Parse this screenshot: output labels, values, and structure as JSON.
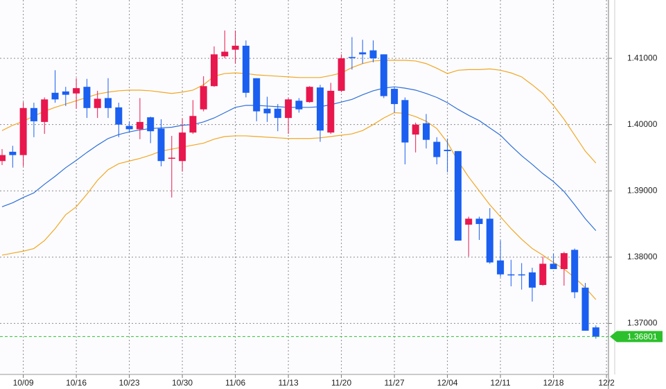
{
  "chart_data": {
    "type": "candlestick",
    "categories": [
      null,
      null,
      "10/09",
      null,
      null,
      null,
      null,
      "10/16",
      null,
      null,
      null,
      null,
      "10/23",
      null,
      null,
      null,
      null,
      "10/30",
      null,
      null,
      null,
      null,
      "11/06",
      null,
      null,
      null,
      null,
      "11/13",
      null,
      null,
      null,
      null,
      "11/20",
      null,
      null,
      null,
      null,
      "11/27",
      null,
      null,
      null,
      null,
      "12/04",
      null,
      null,
      null,
      null,
      "12/11",
      null,
      null,
      null,
      null,
      "12/18",
      null,
      null,
      null,
      null,
      "12/2"
    ],
    "open": [
      1.3945,
      1.3959,
      1.3954,
      1.4025,
      1.4004,
      1.4048,
      1.405,
      1.4047,
      1.4057,
      1.4025,
      1.404,
      1.4026,
      1.3998,
      1.3993,
      1.4011,
      1.3994,
      1.3949,
      1.3945,
      1.3988,
      1.4023,
      1.4058,
      1.4103,
      1.4113,
      1.4119,
      1.407,
      1.4024,
      1.4024,
      1.401,
      1.4036,
      1.4034,
      1.4056,
      1.3988,
      1.4051,
      1.4102,
      1.4109,
      1.4112,
      1.4106,
      1.4054,
      1.4037,
      1.3985,
      1.4002,
      1.3974,
      1.3962,
      1.396,
      1.3849,
      1.3858,
      1.3858,
      1.3795,
      1.3774,
      1.3774,
      1.3777,
      1.3758,
      1.379,
      1.3782,
      1.3811,
      1.3754,
      1.3694,
      null
    ],
    "high": [
      1.3963,
      1.3968,
      1.4034,
      1.4033,
      1.4041,
      1.4082,
      1.4057,
      1.407,
      1.4069,
      1.4051,
      1.407,
      1.4033,
      1.4005,
      1.404,
      1.4012,
      1.4008,
      1.3983,
      1.4009,
      1.4037,
      1.4073,
      1.4118,
      1.4142,
      1.4142,
      1.4127,
      1.407,
      1.4042,
      1.4031,
      1.404,
      1.404,
      1.4058,
      1.406,
      1.4063,
      1.4106,
      1.4132,
      1.4128,
      1.4127,
      1.4106,
      1.4056,
      1.4041,
      1.4003,
      1.4016,
      1.3981,
      1.3979,
      1.396,
      1.3861,
      1.3861,
      1.3874,
      1.3825,
      1.3796,
      1.3791,
      1.3784,
      1.3801,
      1.3805,
      1.3808,
      1.3813,
      1.3761,
      1.3697,
      null
    ],
    "low": [
      1.3939,
      1.3935,
      1.3937,
      1.3981,
      1.3986,
      1.4033,
      1.4028,
      1.4024,
      1.401,
      1.401,
      1.401,
      1.3981,
      1.3989,
      1.3978,
      1.3972,
      1.3937,
      1.389,
      1.3929,
      1.3986,
      1.402,
      1.4057,
      1.41,
      1.4092,
      1.4041,
      1.4005,
      1.4004,
      1.399,
      1.3986,
      1.4018,
      1.4033,
      1.3974,
      1.3986,
      1.4049,
      1.4083,
      1.4092,
      1.4094,
      1.404,
      1.4018,
      1.394,
      1.3958,
      1.3964,
      1.394,
      1.3928,
      1.3825,
      1.3801,
      1.3826,
      1.379,
      1.377,
      1.3756,
      1.3751,
      1.3733,
      1.3757,
      1.3782,
      1.3757,
      1.3738,
      1.3689,
      1.3677,
      null
    ],
    "close": [
      1.3954,
      1.3954,
      1.4025,
      1.4005,
      1.4038,
      1.4038,
      1.4045,
      1.4055,
      1.4025,
      1.4039,
      1.4025,
      1.4,
      1.3993,
      1.4004,
      1.399,
      1.3945,
      1.395,
      1.3988,
      1.4013,
      1.4058,
      1.4106,
      1.411,
      1.4119,
      1.4048,
      1.402,
      1.4017,
      1.401,
      1.4038,
      1.4023,
      1.4057,
      1.3991,
      1.4051,
      1.41,
      1.4101,
      1.4106,
      1.41,
      1.4043,
      1.4031,
      1.3973,
      1.4,
      1.3977,
      1.3951,
      1.396,
      1.3825,
      1.3858,
      1.385,
      1.3792,
      1.3774,
      1.3773,
      1.3773,
      1.3754,
      1.379,
      1.3782,
      1.3806,
      1.3747,
      1.3689,
      1.368,
      null
    ],
    "up_color": "#e8174d",
    "down_color": "#1a5ff0",
    "series": [
      {
        "color": "#f2a623",
        "values": [
          1.3991,
          1.3999,
          1.4005,
          1.4013,
          1.402,
          1.4026,
          1.4031,
          1.4036,
          1.4041,
          1.4046,
          1.4049,
          1.4051,
          1.4052,
          1.4052,
          1.4051,
          1.4049,
          1.4047,
          1.4049,
          1.4052,
          1.406,
          1.4073,
          1.4077,
          1.4078,
          1.4077,
          1.4075,
          1.4074,
          1.4073,
          1.4072,
          1.4071,
          1.4071,
          1.4071,
          1.4074,
          1.4078,
          1.4086,
          1.4092,
          1.4096,
          1.4097,
          1.4097,
          1.4097,
          1.4096,
          1.4092,
          1.4085,
          1.4077,
          1.4082,
          1.4083,
          1.4083,
          1.4084,
          1.4082,
          1.4078,
          1.4072,
          1.406,
          1.4047,
          1.4029,
          1.4008,
          1.3984,
          1.396,
          1.3942,
          null
        ]
      },
      {
        "color": "#2f6fd6",
        "values": [
          1.3876,
          1.3882,
          1.389,
          1.3897,
          1.391,
          1.3922,
          1.3935,
          1.3946,
          1.3958,
          1.3969,
          1.3979,
          1.3985,
          1.3989,
          1.3992,
          1.3994,
          1.3995,
          1.3996,
          1.3999,
          1.4,
          1.4004,
          1.401,
          1.4018,
          1.4026,
          1.4029,
          1.4029,
          1.4028,
          1.4027,
          1.4026,
          1.4026,
          1.4026,
          1.4027,
          1.403,
          1.4034,
          1.4038,
          1.4045,
          1.4051,
          1.4055,
          1.4057,
          1.4055,
          1.4052,
          1.4047,
          1.4041,
          1.4033,
          1.4023,
          1.4014,
          1.4006,
          1.3995,
          1.3984,
          1.3968,
          1.3953,
          1.394,
          1.3926,
          1.3914,
          1.3899,
          1.3879,
          1.3858,
          1.384,
          null
        ]
      },
      {
        "color": "#f2a623",
        "values": [
          1.3803,
          1.3806,
          1.3809,
          1.3813,
          1.3825,
          1.3843,
          1.3864,
          1.3876,
          1.3895,
          1.3916,
          1.3932,
          1.3941,
          1.3945,
          1.3949,
          1.3954,
          1.396,
          1.3963,
          1.3966,
          1.3969,
          1.3972,
          1.3978,
          1.3982,
          1.3983,
          1.3983,
          1.3982,
          1.3981,
          1.398,
          1.3979,
          1.3979,
          1.3979,
          1.398,
          1.3982,
          1.3984,
          1.3986,
          1.3991,
          1.4,
          1.401,
          1.4018,
          1.4017,
          1.4012,
          1.4005,
          1.3994,
          1.3973,
          1.3945,
          1.3921,
          1.39,
          1.3879,
          1.3861,
          1.3843,
          1.3827,
          1.3813,
          1.3803,
          1.3792,
          1.3782,
          1.3769,
          1.3754,
          1.3736,
          null
        ]
      }
    ],
    "current_price": {
      "value": 1.36801,
      "label": "1.36801"
    },
    "current_color": "#2cc02c",
    "ylim": [
      1.3623,
      1.4188
    ],
    "yticks": [
      {
        "value": 1.37,
        "label": "1.37000"
      },
      {
        "value": 1.38,
        "label": "1.38000"
      },
      {
        "value": 1.39,
        "label": "1.39000"
      },
      {
        "value": 1.4,
        "label": "1.40000"
      },
      {
        "value": 1.41,
        "label": "1.41000"
      }
    ],
    "grid": true
  }
}
